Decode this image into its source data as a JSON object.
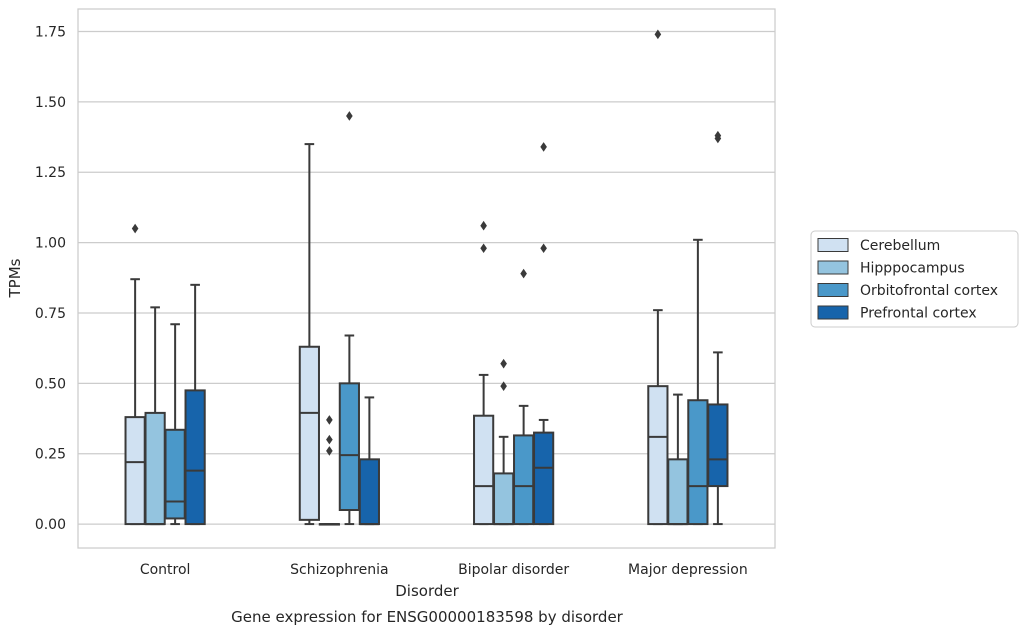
{
  "chart_data": {
    "type": "boxplot",
    "title": "",
    "caption": "Gene expression for ENSG00000183598 by disorder",
    "xlabel": "Disorder",
    "ylabel": "TPMs",
    "ylim": [
      -0.085,
      1.83
    ],
    "yticks": [
      0.0,
      0.25,
      0.5,
      0.75,
      1.0,
      1.25,
      1.5,
      1.75
    ],
    "ytick_labels": [
      "0.00",
      "0.25",
      "0.50",
      "0.75",
      "1.00",
      "1.25",
      "1.50",
      "1.75"
    ],
    "grid": "horizontal",
    "legend_position": "right",
    "categories": [
      "Control",
      "Schizophrenia",
      "Bipolar disorder",
      "Major depression"
    ],
    "series": [
      {
        "name": "Cerebellum",
        "color": "#d0e1f2",
        "boxes": [
          {
            "whislo": 0.0,
            "q1": 0.0,
            "med": 0.22,
            "q3": 0.38,
            "whishi": 0.87,
            "fliers": [
              1.05
            ]
          },
          {
            "whislo": 0.0,
            "q1": 0.015,
            "med": 0.395,
            "q3": 0.63,
            "whishi": 1.35,
            "fliers": []
          },
          {
            "whislo": 0.0,
            "q1": 0.0,
            "med": 0.135,
            "q3": 0.385,
            "whishi": 0.53,
            "fliers": [
              0.98,
              1.06
            ]
          },
          {
            "whislo": 0.0,
            "q1": 0.0,
            "med": 0.31,
            "q3": 0.49,
            "whishi": 0.76,
            "fliers": [
              1.74
            ]
          }
        ]
      },
      {
        "name": "Hipppocampus",
        "color": "#94c4df",
        "boxes": [
          {
            "whislo": 0.0,
            "q1": 0.0,
            "med": 0.0,
            "q3": 0.395,
            "whishi": 0.77,
            "fliers": []
          },
          {
            "whislo": 0.0,
            "q1": 0.0,
            "med": 0.0,
            "q3": 0.0,
            "whishi": 0.0,
            "fliers": [
              0.26,
              0.3,
              0.37
            ]
          },
          {
            "whislo": 0.0,
            "q1": 0.0,
            "med": 0.0,
            "q3": 0.18,
            "whishi": 0.31,
            "fliers": [
              0.49,
              0.57
            ]
          },
          {
            "whislo": 0.0,
            "q1": 0.0,
            "med": 0.0,
            "q3": 0.23,
            "whishi": 0.46,
            "fliers": []
          }
        ]
      },
      {
        "name": "Orbitofrontal cortex",
        "color": "#4a98c9",
        "boxes": [
          {
            "whislo": 0.0,
            "q1": 0.02,
            "med": 0.08,
            "q3": 0.335,
            "whishi": 0.71,
            "fliers": []
          },
          {
            "whislo": 0.0,
            "q1": 0.05,
            "med": 0.245,
            "q3": 0.5,
            "whishi": 0.67,
            "fliers": [
              1.45
            ]
          },
          {
            "whislo": 0.0,
            "q1": 0.0,
            "med": 0.135,
            "q3": 0.315,
            "whishi": 0.42,
            "fliers": [
              0.89
            ]
          },
          {
            "whislo": 0.0,
            "q1": 0.0,
            "med": 0.135,
            "q3": 0.44,
            "whishi": 1.01,
            "fliers": []
          }
        ]
      },
      {
        "name": "Prefrontal cortex",
        "color": "#1764ab",
        "boxes": [
          {
            "whislo": 0.0,
            "q1": 0.0,
            "med": 0.19,
            "q3": 0.475,
            "whishi": 0.85,
            "fliers": []
          },
          {
            "whislo": 0.0,
            "q1": 0.0,
            "med": 0.0,
            "q3": 0.23,
            "whishi": 0.45,
            "fliers": []
          },
          {
            "whislo": 0.0,
            "q1": 0.0,
            "med": 0.2,
            "q3": 0.325,
            "whishi": 0.37,
            "fliers": [
              0.98,
              1.34
            ]
          },
          {
            "whislo": 0.0,
            "q1": 0.135,
            "med": 0.23,
            "q3": 0.425,
            "whishi": 0.61,
            "fliers": [
              1.37,
              1.38
            ]
          }
        ]
      }
    ]
  }
}
